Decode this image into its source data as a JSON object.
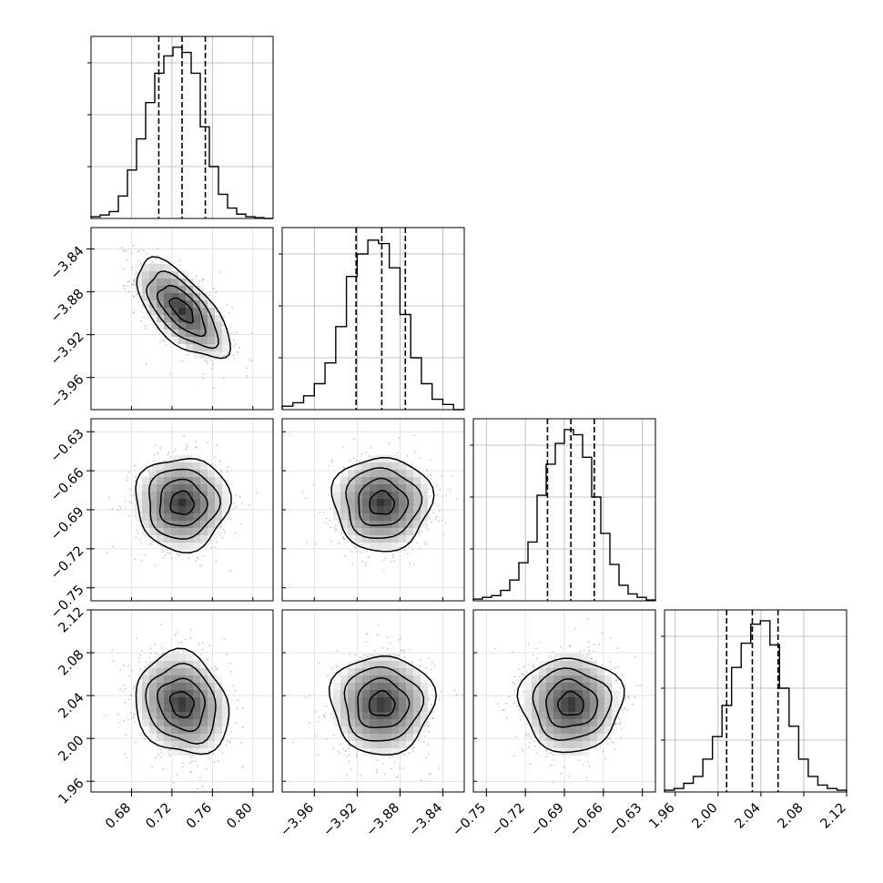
{
  "chart_data": {
    "type": "corner",
    "grid": true,
    "params": [
      {
        "range": [
          0.64,
          0.82
        ],
        "ticks": [
          "0.68",
          "0.72",
          "0.76",
          "0.80"
        ],
        "tick_values": [
          0.68,
          0.72,
          0.76,
          0.8
        ],
        "quantiles": [
          0.707,
          0.73,
          0.753
        ],
        "hist": [
          0.01,
          0.02,
          0.04,
          0.13,
          0.28,
          0.46,
          0.67,
          0.84,
          0.94,
          0.99,
          0.96,
          0.84,
          0.53,
          0.3,
          0.14,
          0.06,
          0.025,
          0.01,
          0.005,
          0.0
        ],
        "hist_yticks": [
          0.3,
          0.6,
          0.9
        ]
      },
      {
        "range": [
          -3.99,
          -3.82
        ],
        "ticks": [
          "-3.96",
          "-3.92",
          "-3.88",
          "-3.84"
        ],
        "tick_values": [
          -3.96,
          -3.92,
          -3.88,
          -3.84
        ],
        "quantiles": [
          -3.921,
          -3.897,
          -3.875
        ],
        "hist": [
          0.02,
          0.04,
          0.08,
          0.15,
          0.27,
          0.48,
          0.77,
          0.9,
          0.98,
          0.96,
          0.82,
          0.55,
          0.3,
          0.15,
          0.06,
          0.03,
          0.0
        ],
        "hist_yticks": [
          0.3,
          0.6,
          0.9
        ]
      },
      {
        "range": [
          -0.76,
          -0.62
        ],
        "ticks": [
          "-0.75",
          "-0.72",
          "-0.69",
          "-0.66",
          "-0.63"
        ],
        "tick_values": [
          -0.75,
          -0.72,
          -0.69,
          -0.66,
          -0.63
        ],
        "quantiles": [
          -0.703,
          -0.685,
          -0.667
        ],
        "hist": [
          0.01,
          0.02,
          0.03,
          0.06,
          0.12,
          0.22,
          0.34,
          0.61,
          0.79,
          0.91,
          0.99,
          0.96,
          0.83,
          0.6,
          0.39,
          0.21,
          0.09,
          0.04,
          0.02,
          0.005
        ],
        "hist_yticks": [
          0.3,
          0.6,
          0.9
        ]
      },
      {
        "range": [
          1.95,
          2.12
        ],
        "ticks": [
          "1.96",
          "2.00",
          "2.04",
          "2.08",
          "2.12"
        ],
        "tick_values": [
          1.96,
          2.0,
          2.04,
          2.08,
          2.12
        ],
        "quantiles": [
          2.008,
          2.032,
          2.056
        ],
        "hist": [
          0.01,
          0.02,
          0.05,
          0.09,
          0.19,
          0.32,
          0.5,
          0.72,
          0.86,
          0.97,
          0.99,
          0.85,
          0.6,
          0.38,
          0.19,
          0.09,
          0.04,
          0.02,
          0.01
        ],
        "hist_yticks": [
          0.3,
          0.6,
          0.9
        ]
      }
    ],
    "pairs": [
      {
        "row": 1,
        "col": 0,
        "center": [
          0.73,
          -3.897
        ],
        "corr": -0.65
      },
      {
        "row": 2,
        "col": 0,
        "center": [
          0.73,
          -0.685
        ],
        "corr": 0.0
      },
      {
        "row": 2,
        "col": 1,
        "center": [
          -3.897,
          -0.685
        ],
        "corr": 0.0
      },
      {
        "row": 3,
        "col": 0,
        "center": [
          0.73,
          2.032
        ],
        "corr": -0.15
      },
      {
        "row": 3,
        "col": 1,
        "center": [
          -3.897,
          2.032
        ],
        "corr": 0.0
      },
      {
        "row": 3,
        "col": 2,
        "center": [
          -0.685,
          2.032
        ],
        "corr": 0.0
      }
    ],
    "contour_sigma_levels": [
      0.5,
      1.0,
      1.5,
      2.0
    ]
  }
}
